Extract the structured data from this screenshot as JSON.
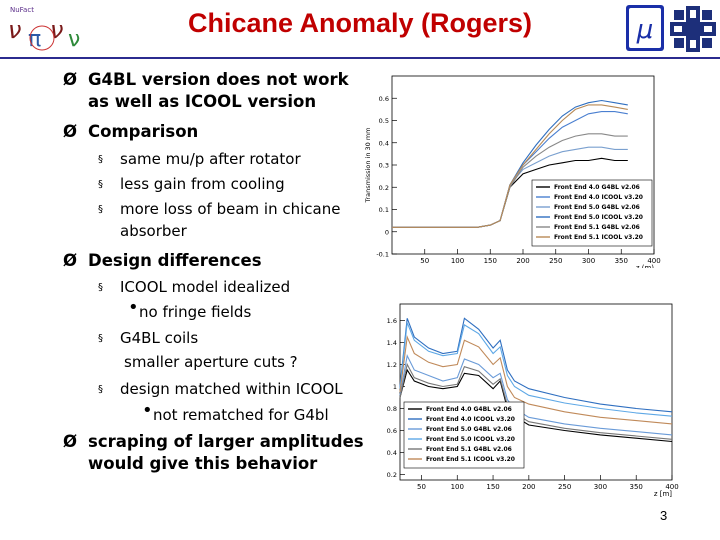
{
  "slide": {
    "title": "Chicane Anomaly (Rogers)",
    "page_number": "3"
  },
  "logos": [
    {
      "name": "nufact-logo",
      "text_top": "NuFact"
    },
    {
      "name": "muon-collaboration-logo",
      "symbol": "μ"
    },
    {
      "name": "fermilab-logo"
    }
  ],
  "content": {
    "bullets": [
      {
        "marker": "Ø",
        "lines": [
          "G4BL version does not work",
          "as well as ICOOL version"
        ]
      },
      {
        "marker": "Ø",
        "lines": [
          "Comparison"
        ]
      },
      {
        "marker": "§",
        "lines": [
          "same mu/p after rotator"
        ]
      },
      {
        "marker": "§",
        "lines": [
          "less gain from cooling"
        ]
      },
      {
        "marker": "§",
        "lines": [
          "more loss of beam in chicane",
          "absorber"
        ]
      },
      {
        "marker": "Ø",
        "lines": [
          "Design differences"
        ]
      },
      {
        "marker": "§",
        "lines": [
          "ICOOL model idealized"
        ]
      },
      {
        "marker": "•",
        "lines": [
          "no fringe fields"
        ]
      },
      {
        "marker": "§",
        "lines": [
          "G4BL coils"
        ]
      },
      {
        "marker": "",
        "lines": [
          "smaller  aperture cuts ?"
        ]
      },
      {
        "marker": "§",
        "lines": [
          "design matched within ICOOL"
        ]
      },
      {
        "marker": "•",
        "lines": [
          "not rematched for G4bl"
        ]
      },
      {
        "marker": "Ø",
        "lines": [
          "scraping of larger amplitudes",
          "would give this behavior"
        ]
      }
    ]
  },
  "chart_data": [
    {
      "type": "line",
      "ylabel": "Transmission in 30 mm",
      "xlabel": "z (m)",
      "xlim": [
        0,
        400
      ],
      "ylim": [
        -0.1,
        0.7
      ],
      "x_ticks": [
        "50",
        "100",
        "150",
        "200",
        "250",
        "300",
        "350",
        "400"
      ],
      "y_ticks": [
        "-0.1",
        "0",
        "0.1",
        "0.2",
        "0.3",
        "0.4",
        "0.5",
        "0.6"
      ],
      "legend_position": "bottom-right",
      "series": [
        {
          "name": "Front End 4.0 G4BL v2.06",
          "color": "#000000",
          "x": [
            0,
            50,
            100,
            130,
            150,
            165,
            180,
            200,
            220,
            240,
            260,
            280,
            300,
            320,
            340,
            360
          ],
          "y": [
            0.02,
            0.02,
            0.02,
            0.02,
            0.03,
            0.05,
            0.2,
            0.26,
            0.28,
            0.3,
            0.31,
            0.32,
            0.32,
            0.33,
            0.32,
            0.32
          ]
        },
        {
          "name": "Front End 4.0 ICOOL v3.20",
          "color": "#4a7fd0",
          "x": [
            0,
            50,
            100,
            130,
            150,
            165,
            180,
            200,
            220,
            240,
            260,
            280,
            300,
            320,
            340,
            360
          ],
          "y": [
            0.02,
            0.02,
            0.02,
            0.02,
            0.03,
            0.05,
            0.21,
            0.3,
            0.36,
            0.42,
            0.47,
            0.5,
            0.53,
            0.54,
            0.54,
            0.53
          ]
        },
        {
          "name": "Front End 5.0 G4BL v2.06",
          "color": "#7aa0cf",
          "x": [
            0,
            50,
            100,
            130,
            150,
            165,
            180,
            200,
            220,
            240,
            260,
            280,
            300,
            320,
            340,
            360
          ],
          "y": [
            0.02,
            0.02,
            0.02,
            0.02,
            0.03,
            0.05,
            0.21,
            0.28,
            0.31,
            0.34,
            0.36,
            0.37,
            0.38,
            0.38,
            0.37,
            0.37
          ]
        },
        {
          "name": "Front End 5.0 ICOOL v3.20",
          "color": "#2f6fc0",
          "x": [
            0,
            50,
            100,
            130,
            150,
            165,
            180,
            200,
            220,
            240,
            260,
            280,
            300,
            320,
            340,
            360
          ],
          "y": [
            0.02,
            0.02,
            0.02,
            0.02,
            0.03,
            0.05,
            0.21,
            0.31,
            0.39,
            0.46,
            0.52,
            0.56,
            0.58,
            0.59,
            0.58,
            0.57
          ]
        },
        {
          "name": "Front End 5.1 G4BL v2.06",
          "color": "#888888",
          "x": [
            0,
            50,
            100,
            130,
            150,
            165,
            180,
            200,
            220,
            240,
            260,
            280,
            300,
            320,
            340,
            360
          ],
          "y": [
            0.02,
            0.02,
            0.02,
            0.02,
            0.03,
            0.05,
            0.2,
            0.29,
            0.34,
            0.38,
            0.41,
            0.43,
            0.44,
            0.44,
            0.43,
            0.43
          ]
        },
        {
          "name": "Front End 5.1 ICOOL v3.20",
          "color": "#b88a56",
          "x": [
            0,
            50,
            100,
            130,
            150,
            165,
            180,
            200,
            220,
            240,
            260,
            280,
            300,
            320,
            340,
            360
          ],
          "y": [
            0.02,
            0.02,
            0.02,
            0.02,
            0.03,
            0.05,
            0.21,
            0.3,
            0.37,
            0.44,
            0.5,
            0.55,
            0.57,
            0.57,
            0.56,
            0.55
          ]
        }
      ]
    },
    {
      "type": "line",
      "xlabel": "z [m]",
      "xlim": [
        20,
        400
      ],
      "ylim": [
        0.15,
        1.75
      ],
      "x_ticks": [
        "50",
        "100",
        "150",
        "200",
        "250",
        "300",
        "350",
        "400"
      ],
      "y_ticks": [
        "0.2",
        "0.4",
        "0.6",
        "0.8",
        "1",
        "1.2",
        "1.4",
        "1.6"
      ],
      "legend_position": "bottom-left",
      "series": [
        {
          "name": "Front End 4.0 G4BL v2.06",
          "color": "#000000",
          "x": [
            20,
            30,
            40,
            60,
            80,
            100,
            110,
            130,
            150,
            160,
            170,
            180,
            200,
            250,
            300,
            350,
            400
          ],
          "y": [
            0.9,
            1.15,
            1.05,
            1.0,
            0.98,
            1.0,
            1.12,
            1.1,
            0.98,
            1.05,
            0.8,
            0.73,
            0.65,
            0.6,
            0.56,
            0.53,
            0.5
          ]
        },
        {
          "name": "Front End 4.0 ICOOL v3.20",
          "color": "#2f6fc0",
          "x": [
            20,
            30,
            40,
            60,
            80,
            100,
            110,
            130,
            150,
            160,
            170,
            180,
            200,
            250,
            300,
            350,
            400
          ],
          "y": [
            1.0,
            1.62,
            1.45,
            1.35,
            1.3,
            1.32,
            1.62,
            1.52,
            1.35,
            1.42,
            1.15,
            1.05,
            0.98,
            0.9,
            0.84,
            0.8,
            0.77
          ]
        },
        {
          "name": "Front End 5.0 G4BL v2.06",
          "color": "#6a9bd8",
          "x": [
            20,
            30,
            40,
            60,
            80,
            100,
            110,
            130,
            150,
            160,
            170,
            180,
            200,
            250,
            300,
            350,
            400
          ],
          "y": [
            0.92,
            1.28,
            1.15,
            1.1,
            1.05,
            1.08,
            1.25,
            1.2,
            1.08,
            1.12,
            0.88,
            0.8,
            0.72,
            0.66,
            0.62,
            0.59,
            0.56
          ]
        },
        {
          "name": "Front End 5.0 ICOOL v3.20",
          "color": "#5ea8e6",
          "x": [
            20,
            30,
            40,
            60,
            80,
            100,
            110,
            130,
            150,
            160,
            170,
            180,
            200,
            250,
            300,
            350,
            400
          ],
          "y": [
            0.98,
            1.58,
            1.42,
            1.32,
            1.28,
            1.3,
            1.56,
            1.48,
            1.3,
            1.36,
            1.1,
            1.0,
            0.92,
            0.85,
            0.8,
            0.76,
            0.73
          ]
        },
        {
          "name": "Front End 5.1 G4BL v2.06",
          "color": "#777777",
          "x": [
            20,
            30,
            40,
            60,
            80,
            100,
            110,
            130,
            150,
            160,
            170,
            180,
            200,
            250,
            300,
            350,
            400
          ],
          "y": [
            0.9,
            1.2,
            1.08,
            1.03,
            1.0,
            1.02,
            1.18,
            1.14,
            1.02,
            1.07,
            0.83,
            0.76,
            0.68,
            0.62,
            0.58,
            0.55,
            0.52
          ]
        },
        {
          "name": "Front End 5.1 ICOOL v3.20",
          "color": "#c08a5a",
          "x": [
            20,
            30,
            40,
            60,
            80,
            100,
            110,
            130,
            150,
            160,
            170,
            180,
            200,
            250,
            300,
            350,
            400
          ],
          "y": [
            0.95,
            1.45,
            1.3,
            1.22,
            1.18,
            1.2,
            1.42,
            1.36,
            1.2,
            1.26,
            1.0,
            0.9,
            0.84,
            0.77,
            0.72,
            0.69,
            0.66
          ]
        }
      ]
    }
  ]
}
